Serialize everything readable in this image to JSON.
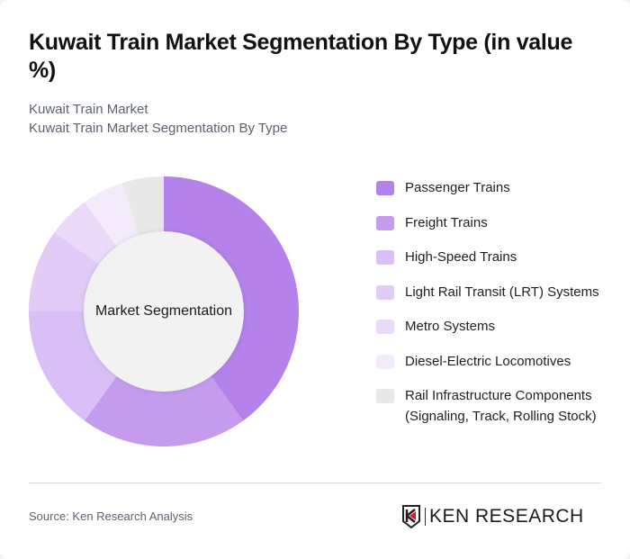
{
  "header": {
    "title": "Kuwait Train Market Segmentation By Type (in value %)",
    "subtitle_1": "Kuwait Train Market",
    "subtitle_2": "Kuwait Train Market Segmentation By Type"
  },
  "chart": {
    "center_label": "Market Segmentation"
  },
  "legend": {
    "items": [
      {
        "label": "Passenger Trains",
        "color": "#b482ea"
      },
      {
        "label": "Freight Trains",
        "color": "#c59bee"
      },
      {
        "label": "High-Speed Trains",
        "color": "#d9bff5"
      },
      {
        "label": "Light Rail Transit (LRT) Systems",
        "color": "#e2cbf6"
      },
      {
        "label": "Metro Systems",
        "color": "#ead9f9"
      },
      {
        "label": "Diesel-Electric Locomotives",
        "color": "#f3ebfc"
      },
      {
        "label": "Rail Infrastructure Components (Signaling, Track, Rolling Stock)",
        "color": "#e8e8e8"
      }
    ]
  },
  "footer": {
    "source": "Source: Ken Research Analysis",
    "logo_text": "KEN RESEARCH"
  },
  "chart_data": {
    "type": "pie",
    "subtype": "donut",
    "title": "Kuwait Train Market Segmentation By Type (in value %)",
    "subtitle": [
      "Kuwait Train Market",
      "Kuwait Train Market Segmentation By Type"
    ],
    "center_label": "Market Segmentation",
    "categories": [
      "Passenger Trains",
      "Freight Trains",
      "High-Speed Trains",
      "Light Rail Transit (LRT) Systems",
      "Metro Systems",
      "Diesel-Electric Locomotives",
      "Rail Infrastructure Components (Signaling, Track, Rolling Stock)"
    ],
    "values": [
      40,
      20,
      15,
      10,
      5,
      5,
      5
    ],
    "colors": [
      "#b482ea",
      "#c59bee",
      "#d9bff5",
      "#e2cbf6",
      "#ead9f9",
      "#f3ebfc",
      "#e8e8e8"
    ],
    "unit": "%",
    "legend_position": "right",
    "source": "Source: Ken Research Analysis"
  }
}
